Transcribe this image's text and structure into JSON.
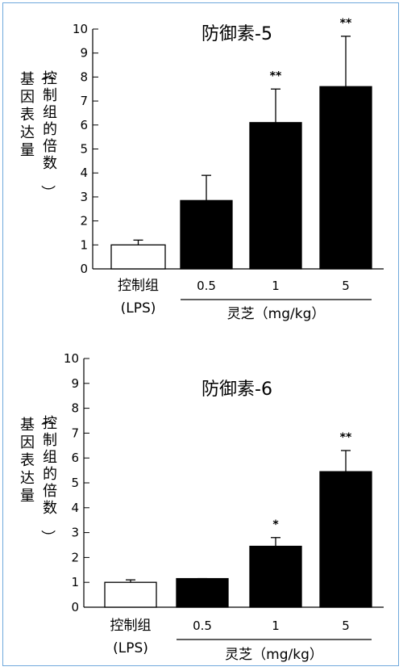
{
  "chart_data": [
    {
      "type": "bar",
      "title": "防御素-5",
      "ylabel_main": "基因表达量",
      "ylabel_sub": "（控制组的倍数）",
      "ylim": [
        0,
        10
      ],
      "yticks": [
        0,
        1,
        2,
        3,
        4,
        5,
        6,
        7,
        8,
        9,
        10
      ],
      "categories": [
        "控制组",
        "0.5",
        "1",
        "5"
      ],
      "control_sublabel": "(LPS)",
      "group_label": "灵芝（mg/kg）",
      "values": [
        1.0,
        2.85,
        6.1,
        7.6
      ],
      "errors": [
        0.2,
        1.05,
        1.4,
        2.1
      ],
      "significance": [
        "",
        "",
        "**",
        "**"
      ],
      "colors": [
        "#ffffff",
        "#000000",
        "#000000",
        "#000000"
      ]
    },
    {
      "type": "bar",
      "title": "防御素-6",
      "ylabel_main": "基因表达量",
      "ylabel_sub": "（控制组的倍数）",
      "ylim": [
        0,
        10
      ],
      "yticks": [
        0,
        1,
        2,
        3,
        4,
        5,
        6,
        7,
        8,
        9,
        10
      ],
      "categories": [
        "控制组",
        "0.5",
        "1",
        "5"
      ],
      "control_sublabel": "(LPS)",
      "group_label": "灵芝（mg/kg）",
      "values": [
        1.0,
        1.15,
        2.45,
        5.45
      ],
      "errors": [
        0.1,
        0.0,
        0.35,
        0.85
      ],
      "significance": [
        "",
        "",
        "*",
        "**"
      ],
      "colors": [
        "#ffffff",
        "#000000",
        "#000000",
        "#000000"
      ]
    }
  ]
}
